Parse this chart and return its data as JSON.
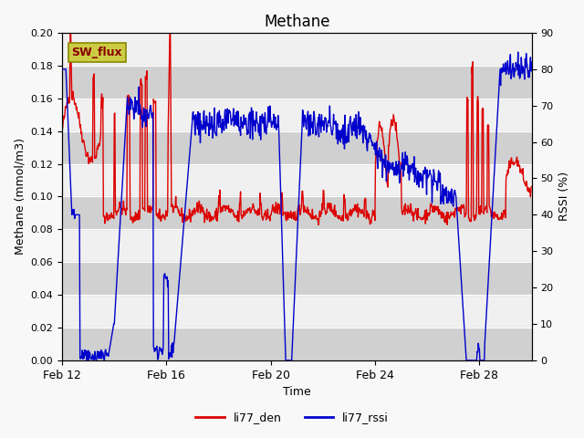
{
  "title": "Methane",
  "xlabel": "Time",
  "ylabel_left": "Methane (mmol/m3)",
  "ylabel_right": "RSSI (%)",
  "ylim_left": [
    0.0,
    0.2
  ],
  "ylim_right": [
    0,
    90
  ],
  "yticks_left": [
    0.0,
    0.02,
    0.04,
    0.06,
    0.08,
    0.1,
    0.12,
    0.14,
    0.16,
    0.18,
    0.2
  ],
  "yticks_right": [
    0,
    10,
    20,
    30,
    40,
    50,
    60,
    70,
    80,
    90
  ],
  "xtick_labels": [
    "Feb 12",
    "Feb 16",
    "Feb 20",
    "Feb 24",
    "Feb 28"
  ],
  "color_red": "#dd0000",
  "color_blue": "#0000cc",
  "legend_labels": [
    "li77_den",
    "li77_rssi"
  ],
  "annotation_text": "SW_flux",
  "annotation_bg": "#cccc44",
  "annotation_border": "#888800",
  "bg_inner": "#f0f0f0",
  "linewidth": 1.0
}
